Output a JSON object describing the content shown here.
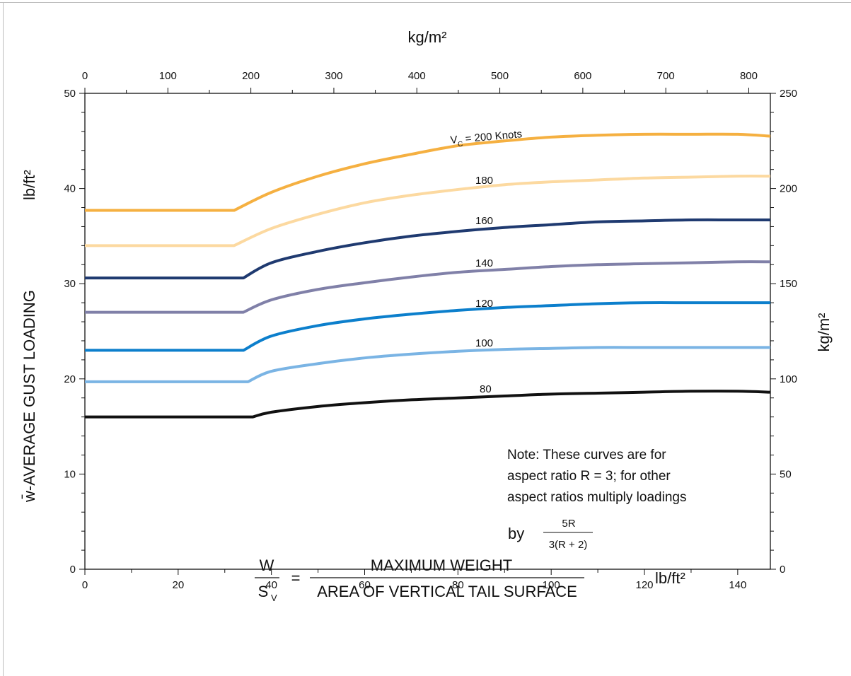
{
  "chart_data": {
    "type": "line",
    "title": "",
    "xlabel": {
      "numerator": "W",
      "denominator_main": "S",
      "denominator_sub": "V",
      "equals": "=",
      "fraction_top": "MAXIMUM WEIGHT",
      "fraction_bottom": "AREA OF VERTICAL TAIL SURFACE",
      "unit": "lb/ft²"
    },
    "ylabel": "w̄-AVERAGE GUST LOADING",
    "ylabel_unit": "lb/ft²",
    "x2label": "kg/m²",
    "y2label": "kg/m²",
    "xlim": [
      0,
      147
    ],
    "ylim": [
      0,
      50
    ],
    "x2lim": [
      0,
      826
    ],
    "y2lim": [
      0,
      250
    ],
    "x_ticks": [
      "0",
      "20",
      "40",
      "60",
      "80",
      "100",
      "120",
      "140"
    ],
    "y_ticks": [
      "0",
      "10",
      "20",
      "30",
      "40",
      "50"
    ],
    "x2_ticks": [
      "0",
      "100",
      "200",
      "300",
      "400",
      "500",
      "600",
      "700",
      "800"
    ],
    "y2_ticks": [
      "0",
      "50",
      "100",
      "150",
      "200",
      "250"
    ],
    "grid": false,
    "series": [
      {
        "name": "200",
        "label_main": "V",
        "label_sub": "C",
        "label_rest": "= 200 Knots",
        "color": "#f5b041",
        "x": [
          0,
          32,
          40,
          50,
          60,
          70,
          80,
          90,
          100,
          110,
          120,
          130,
          140,
          147
        ],
        "y": [
          37.7,
          37.7,
          39.6,
          41.3,
          42.6,
          43.6,
          44.5,
          45.0,
          45.4,
          45.6,
          45.7,
          45.7,
          45.7,
          45.5
        ]
      },
      {
        "name": "180",
        "label_main": "180",
        "color": "#fcd9a0",
        "x": [
          0,
          32,
          40,
          50,
          60,
          70,
          80,
          90,
          100,
          110,
          120,
          130,
          140,
          147
        ],
        "y": [
          34.0,
          34.0,
          35.8,
          37.3,
          38.5,
          39.3,
          39.9,
          40.4,
          40.7,
          40.9,
          41.1,
          41.2,
          41.3,
          41.3
        ]
      },
      {
        "name": "160",
        "label_main": "160",
        "color": "#1f3a70",
        "x": [
          0,
          34,
          40,
          50,
          60,
          70,
          80,
          90,
          100,
          110,
          120,
          130,
          140,
          147
        ],
        "y": [
          30.6,
          30.6,
          32.2,
          33.4,
          34.3,
          35.0,
          35.5,
          35.9,
          36.2,
          36.5,
          36.6,
          36.7,
          36.7,
          36.7
        ]
      },
      {
        "name": "140",
        "label_main": "140",
        "color": "#8080a8",
        "x": [
          0,
          34,
          40,
          50,
          60,
          70,
          80,
          90,
          100,
          110,
          120,
          130,
          140,
          147
        ],
        "y": [
          27.0,
          27.0,
          28.3,
          29.4,
          30.1,
          30.7,
          31.2,
          31.5,
          31.8,
          32.0,
          32.1,
          32.2,
          32.3,
          32.3
        ]
      },
      {
        "name": "120",
        "label_main": "120",
        "color": "#0c7fcc",
        "x": [
          0,
          34,
          40,
          50,
          60,
          70,
          80,
          90,
          100,
          110,
          120,
          130,
          140,
          147
        ],
        "y": [
          23.0,
          23.0,
          24.5,
          25.6,
          26.3,
          26.8,
          27.2,
          27.5,
          27.7,
          27.9,
          28.0,
          28.0,
          28.0,
          28.0
        ]
      },
      {
        "name": "100",
        "label_main": "100",
        "color": "#7ab4e4",
        "x": [
          0,
          35,
          40,
          50,
          60,
          70,
          80,
          90,
          100,
          110,
          120,
          130,
          140,
          147
        ],
        "y": [
          19.7,
          19.7,
          20.8,
          21.6,
          22.2,
          22.6,
          22.9,
          23.1,
          23.2,
          23.3,
          23.3,
          23.3,
          23.3,
          23.3
        ]
      },
      {
        "name": "80",
        "label_main": "80",
        "color": "#111111",
        "x": [
          0,
          36,
          40,
          50,
          60,
          70,
          80,
          90,
          100,
          110,
          120,
          130,
          140,
          147
        ],
        "y": [
          16.0,
          16.0,
          16.5,
          17.1,
          17.5,
          17.8,
          18.0,
          18.2,
          18.4,
          18.5,
          18.6,
          18.7,
          18.7,
          18.6
        ]
      }
    ],
    "note": {
      "lines": [
        "Note: These curves are for",
        "aspect ratio R = 3; for other",
        "aspect ratios multiply loadings"
      ],
      "by": "by",
      "frac_top": "5R",
      "frac_bottom": "3(R + 2)"
    }
  }
}
